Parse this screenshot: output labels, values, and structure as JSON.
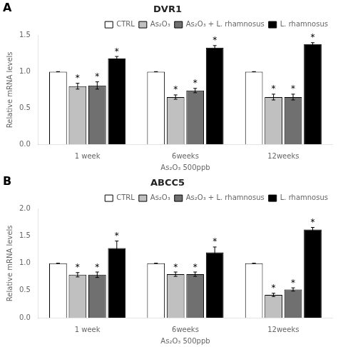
{
  "chart_data": [
    {
      "type": "bar",
      "title": "DVR1",
      "annotations": [
        "A"
      ],
      "categories": [
        "1 week",
        "6weeks",
        "12weeks"
      ],
      "series": [
        {
          "name": "CTRL",
          "color": "#ffffff",
          "values": [
            1.0,
            1.0,
            1.0
          ],
          "errors": [
            0.0,
            0.0,
            0.0
          ]
        },
        {
          "name": "As₂O₃",
          "color": "#c0c0c0",
          "values": [
            0.8,
            0.65,
            0.65
          ],
          "errors": [
            0.04,
            0.03,
            0.04
          ],
          "annotations": [
            "*",
            "*",
            "*"
          ]
        },
        {
          "name": "As₂O₃ + L. rhamnosus",
          "color": "#707070",
          "values": [
            0.81,
            0.74,
            0.65
          ],
          "errors": [
            0.05,
            0.03,
            0.04
          ],
          "annotations": [
            "*",
            "*",
            "*"
          ]
        },
        {
          "name": "L. rhamnosus",
          "color": "#000000",
          "values": [
            1.18,
            1.33,
            1.38
          ],
          "errors": [
            0.03,
            0.03,
            0.02
          ],
          "annotations": [
            "*",
            "*",
            "*"
          ]
        }
      ],
      "xlabel": "As₂O₃ 500ppb",
      "ylabel": "Relative mRNA levels",
      "ylim": [
        0.0,
        1.5
      ],
      "yticks": [
        {
          "value": 0,
          "label": "0.0"
        },
        0.5,
        {
          "value": 1,
          "label": "1.0"
        },
        1.5
      ],
      "grid": false,
      "legend": "upper right"
    },
    {
      "type": "bar",
      "title": "ABCC5",
      "annotations": [
        "B"
      ],
      "categories": [
        "1 week",
        "6weeks",
        "12weeks"
      ],
      "series": [
        {
          "name": "CTRL",
          "color": "#ffffff",
          "values": [
            1.0,
            1.0,
            1.0
          ],
          "errors": [
            0.0,
            0.0,
            0.0
          ]
        },
        {
          "name": "As₂O₃",
          "color": "#c0c0c0",
          "values": [
            0.79,
            0.8,
            0.42
          ],
          "errors": [
            0.04,
            0.04,
            0.03
          ],
          "annotations": [
            "*",
            "*",
            "*"
          ]
        },
        {
          "name": "As₂O₃ + L. rhamnosus",
          "color": "#707070",
          "values": [
            0.79,
            0.8,
            0.52
          ],
          "errors": [
            0.05,
            0.04,
            0.03
          ],
          "annotations": [
            "*",
            "*",
            "*"
          ]
        },
        {
          "name": "L. rhamnosus",
          "color": "#000000",
          "values": [
            1.28,
            1.2,
            1.62
          ],
          "errors": [
            0.13,
            0.1,
            0.04
          ],
          "annotations": [
            "*",
            "*",
            "*"
          ]
        }
      ],
      "xlabel": "As₂O₃ 500ppb",
      "ylabel": "Relative mRNA levels",
      "ylim": [
        0.0,
        2.0
      ],
      "yticks": [
        {
          "value": 0,
          "label": "0.0"
        },
        0.5,
        {
          "value": 1,
          "label": "1.0"
        },
        1.5,
        {
          "value": 2,
          "label": "2.0"
        }
      ],
      "grid": false,
      "legend": "upper right"
    }
  ]
}
